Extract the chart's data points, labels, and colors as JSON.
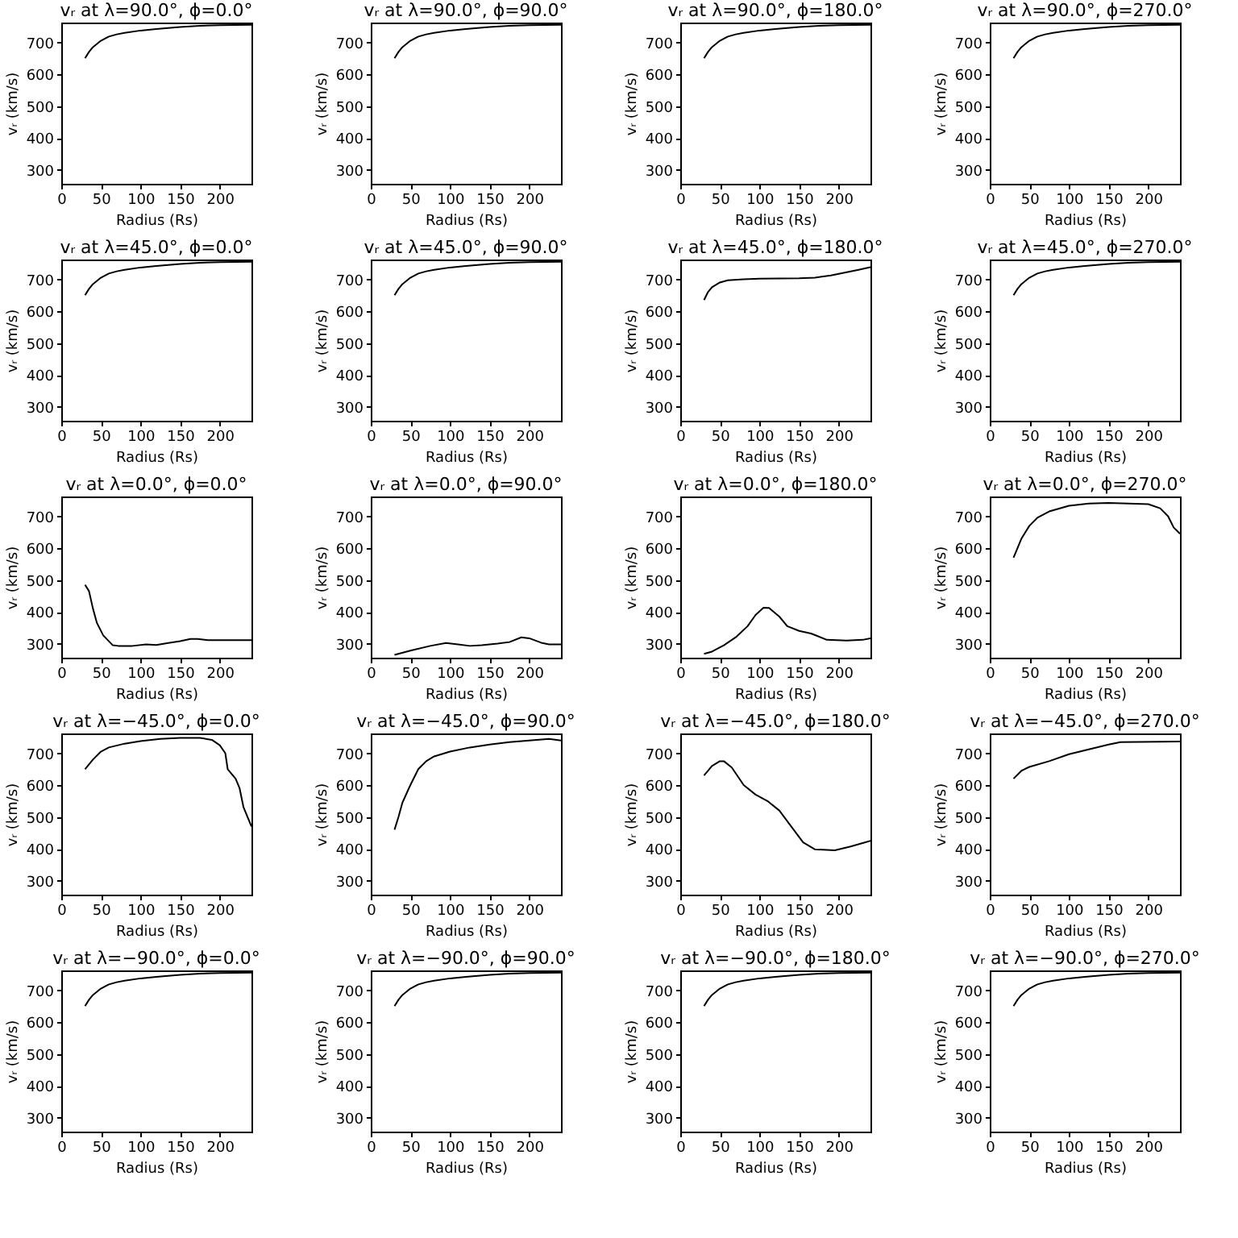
{
  "chart_data": [
    {
      "type": "line",
      "title": "vᵣ at λ=90.0°, ϕ=0.0°",
      "xlabel": "Radius (Rs)",
      "ylabel": "vᵣ (km/s)",
      "xlim": [
        0,
        240
      ],
      "ylim": [
        256,
        762
      ],
      "xticks": [
        0,
        50,
        100,
        150,
        200
      ],
      "yticks": [
        300,
        400,
        500,
        600,
        700
      ],
      "color": "#000000",
      "x": [
        30,
        35,
        40,
        50,
        60,
        70,
        80,
        100,
        120,
        150,
        175,
        200,
        240
      ],
      "values": [
        650,
        670,
        685,
        705,
        718,
        725,
        730,
        737,
        742,
        748,
        752,
        754,
        755
      ]
    },
    {
      "type": "line",
      "title": "vᵣ at λ=90.0°, ϕ=90.0°",
      "xlabel": "Radius (Rs)",
      "ylabel": "vᵣ (km/s)",
      "xlim": [
        0,
        240
      ],
      "ylim": [
        256,
        762
      ],
      "xticks": [
        0,
        50,
        100,
        150,
        200
      ],
      "yticks": [
        300,
        400,
        500,
        600,
        700
      ],
      "color": "#000000",
      "x": [
        30,
        35,
        40,
        50,
        60,
        70,
        80,
        100,
        120,
        150,
        175,
        200,
        240
      ],
      "values": [
        650,
        670,
        685,
        705,
        718,
        725,
        730,
        737,
        742,
        748,
        752,
        754,
        755
      ]
    },
    {
      "type": "line",
      "title": "vᵣ at λ=90.0°, ϕ=180.0°",
      "xlabel": "Radius (Rs)",
      "ylabel": "vᵣ (km/s)",
      "xlim": [
        0,
        240
      ],
      "ylim": [
        256,
        762
      ],
      "xticks": [
        0,
        50,
        100,
        150,
        200
      ],
      "yticks": [
        300,
        400,
        500,
        600,
        700
      ],
      "color": "#000000",
      "x": [
        30,
        35,
        40,
        50,
        60,
        70,
        80,
        100,
        120,
        150,
        175,
        200,
        240
      ],
      "values": [
        650,
        670,
        685,
        705,
        718,
        725,
        730,
        737,
        742,
        748,
        752,
        754,
        755
      ]
    },
    {
      "type": "line",
      "title": "vᵣ at λ=90.0°, ϕ=270.0°",
      "xlabel": "Radius (Rs)",
      "ylabel": "vᵣ (km/s)",
      "xlim": [
        0,
        240
      ],
      "ylim": [
        256,
        762
      ],
      "xticks": [
        0,
        50,
        100,
        150,
        200
      ],
      "yticks": [
        300,
        400,
        500,
        600,
        700
      ],
      "color": "#000000",
      "x": [
        30,
        35,
        40,
        50,
        60,
        70,
        80,
        100,
        120,
        150,
        175,
        200,
        240
      ],
      "values": [
        650,
        670,
        685,
        705,
        718,
        725,
        730,
        737,
        742,
        748,
        752,
        754,
        755
      ]
    },
    {
      "type": "line",
      "title": "vᵣ at λ=45.0°, ϕ=0.0°",
      "xlabel": "Radius (Rs)",
      "ylabel": "vᵣ (km/s)",
      "xlim": [
        0,
        240
      ],
      "ylim": [
        256,
        762
      ],
      "xticks": [
        0,
        50,
        100,
        150,
        200
      ],
      "yticks": [
        300,
        400,
        500,
        600,
        700
      ],
      "color": "#000000",
      "x": [
        30,
        35,
        40,
        50,
        60,
        70,
        80,
        100,
        120,
        150,
        175,
        200,
        240
      ],
      "values": [
        650,
        670,
        685,
        705,
        718,
        725,
        730,
        737,
        742,
        748,
        752,
        754,
        755
      ]
    },
    {
      "type": "line",
      "title": "vᵣ at λ=45.0°, ϕ=90.0°",
      "xlabel": "Radius (Rs)",
      "ylabel": "vᵣ (km/s)",
      "xlim": [
        0,
        240
      ],
      "ylim": [
        256,
        762
      ],
      "xticks": [
        0,
        50,
        100,
        150,
        200
      ],
      "yticks": [
        300,
        400,
        500,
        600,
        700
      ],
      "color": "#000000",
      "x": [
        30,
        35,
        40,
        50,
        60,
        70,
        80,
        100,
        120,
        150,
        175,
        200,
        240
      ],
      "values": [
        650,
        670,
        685,
        705,
        718,
        725,
        730,
        737,
        742,
        748,
        752,
        754,
        755
      ]
    },
    {
      "type": "line",
      "title": "vᵣ at λ=45.0°, ϕ=180.0°",
      "xlabel": "Radius (Rs)",
      "ylabel": "vᵣ (km/s)",
      "xlim": [
        0,
        240
      ],
      "ylim": [
        256,
        762
      ],
      "xticks": [
        0,
        50,
        100,
        150,
        200
      ],
      "yticks": [
        300,
        400,
        500,
        600,
        700
      ],
      "color": "#000000",
      "x": [
        30,
        35,
        40,
        50,
        60,
        80,
        100,
        150,
        170,
        190,
        210,
        225,
        240
      ],
      "values": [
        635,
        660,
        675,
        690,
        697,
        700,
        702,
        703,
        705,
        712,
        722,
        730,
        738
      ]
    },
    {
      "type": "line",
      "title": "vᵣ at λ=45.0°, ϕ=270.0°",
      "xlabel": "Radius (Rs)",
      "ylabel": "vᵣ (km/s)",
      "xlim": [
        0,
        240
      ],
      "ylim": [
        256,
        762
      ],
      "xticks": [
        0,
        50,
        100,
        150,
        200
      ],
      "yticks": [
        300,
        400,
        500,
        600,
        700
      ],
      "color": "#000000",
      "x": [
        30,
        35,
        40,
        50,
        60,
        70,
        80,
        100,
        120,
        150,
        175,
        200,
        240
      ],
      "values": [
        650,
        670,
        685,
        705,
        718,
        725,
        730,
        737,
        742,
        748,
        752,
        754,
        755
      ]
    },
    {
      "type": "line",
      "title": "vᵣ at λ=0.0°, ϕ=0.0°",
      "xlabel": "Radius (Rs)",
      "ylabel": "vᵣ (km/s)",
      "xlim": [
        0,
        240
      ],
      "ylim": [
        256,
        762
      ],
      "xticks": [
        0,
        50,
        100,
        150,
        200
      ],
      "yticks": [
        300,
        400,
        500,
        600,
        700
      ],
      "color": "#000000",
      "x": [
        30,
        35,
        40,
        45,
        53,
        65,
        72,
        90,
        107,
        120,
        135,
        150,
        163,
        172,
        185,
        240
      ],
      "values": [
        485,
        465,
        410,
        365,
        326,
        295,
        293,
        293,
        298,
        296,
        302,
        308,
        315,
        315,
        311,
        311
      ]
    },
    {
      "type": "line",
      "title": "vᵣ at λ=0.0°, ϕ=90.0°",
      "xlabel": "Radius (Rs)",
      "ylabel": "vᵣ (km/s)",
      "xlim": [
        0,
        240
      ],
      "ylim": [
        256,
        762
      ],
      "xticks": [
        0,
        50,
        100,
        150,
        200
      ],
      "yticks": [
        300,
        400,
        500,
        600,
        700
      ],
      "color": "#000000",
      "x": [
        30,
        50,
        75,
        95,
        110,
        125,
        140,
        160,
        175,
        190,
        200,
        215,
        225,
        240
      ],
      "values": [
        265,
        278,
        293,
        302,
        298,
        293,
        295,
        300,
        305,
        320,
        317,
        303,
        298,
        298
      ]
    },
    {
      "type": "line",
      "title": "vᵣ at λ=0.0°, ϕ=180.0°",
      "xlabel": "Radius (Rs)",
      "ylabel": "vᵣ (km/s)",
      "xlim": [
        0,
        240
      ],
      "ylim": [
        256,
        762
      ],
      "xticks": [
        0,
        50,
        100,
        150,
        200
      ],
      "yticks": [
        300,
        400,
        500,
        600,
        700
      ],
      "color": "#000000",
      "x": [
        30,
        40,
        55,
        70,
        85,
        95,
        105,
        112,
        125,
        135,
        150,
        165,
        185,
        210,
        230,
        240
      ],
      "values": [
        268,
        275,
        295,
        320,
        355,
        390,
        413,
        412,
        385,
        355,
        340,
        332,
        312,
        310,
        312,
        317
      ]
    },
    {
      "type": "line",
      "title": "vᵣ at λ=0.0°, ϕ=270.0°",
      "xlabel": "Radius (Rs)",
      "ylabel": "vᵣ (km/s)",
      "xlim": [
        0,
        240
      ],
      "ylim": [
        256,
        762
      ],
      "xticks": [
        0,
        50,
        100,
        150,
        200
      ],
      "yticks": [
        300,
        400,
        500,
        600,
        700
      ],
      "color": "#000000",
      "x": [
        30,
        35,
        40,
        50,
        60,
        75,
        100,
        125,
        150,
        175,
        200,
        215,
        225,
        232,
        240
      ],
      "values": [
        570,
        600,
        630,
        670,
        695,
        715,
        733,
        740,
        742,
        740,
        738,
        725,
        700,
        665,
        645
      ]
    },
    {
      "type": "line",
      "title": "vᵣ at λ=−45.0°, ϕ=0.0°",
      "xlabel": "Radius (Rs)",
      "ylabel": "vᵣ (km/s)",
      "xlim": [
        0,
        240
      ],
      "ylim": [
        256,
        762
      ],
      "xticks": [
        0,
        50,
        100,
        150,
        200
      ],
      "yticks": [
        300,
        400,
        500,
        600,
        700
      ],
      "color": "#000000",
      "x": [
        30,
        40,
        50,
        60,
        80,
        100,
        125,
        150,
        175,
        190,
        200,
        207,
        210,
        220,
        225,
        230,
        240
      ],
      "values": [
        650,
        680,
        705,
        718,
        730,
        738,
        745,
        748,
        748,
        742,
        725,
        700,
        650,
        620,
        590,
        530,
        470
      ]
    },
    {
      "type": "line",
      "title": "vᵣ at λ=−45.0°, ϕ=90.0°",
      "xlabel": "Radius (Rs)",
      "ylabel": "vᵣ (km/s)",
      "xlim": [
        0,
        240
      ],
      "ylim": [
        256,
        762
      ],
      "xticks": [
        0,
        50,
        100,
        150,
        200
      ],
      "yticks": [
        300,
        400,
        500,
        600,
        700
      ],
      "color": "#000000",
      "x": [
        30,
        35,
        40,
        50,
        60,
        70,
        80,
        100,
        125,
        150,
        175,
        200,
        225,
        240
      ],
      "values": [
        460,
        500,
        545,
        600,
        650,
        675,
        690,
        705,
        718,
        727,
        735,
        740,
        745,
        740
      ]
    },
    {
      "type": "line",
      "title": "vᵣ at λ=−45.0°, ϕ=180.0°",
      "xlabel": "Radius (Rs)",
      "ylabel": "vᵣ (km/s)",
      "xlim": [
        0,
        240
      ],
      "ylim": [
        256,
        762
      ],
      "xticks": [
        0,
        50,
        100,
        150,
        200
      ],
      "yticks": [
        300,
        400,
        500,
        600,
        700
      ],
      "color": "#000000",
      "x": [
        30,
        40,
        50,
        55,
        65,
        80,
        95,
        110,
        125,
        140,
        155,
        170,
        195,
        215,
        240
      ],
      "values": [
        630,
        660,
        675,
        675,
        655,
        600,
        570,
        550,
        520,
        470,
        420,
        398,
        395,
        407,
        425
      ]
    },
    {
      "type": "line",
      "title": "vᵣ at λ=−45.0°, ϕ=270.0°",
      "xlabel": "Radius (Rs)",
      "ylabel": "vᵣ (km/s)",
      "xlim": [
        0,
        240
      ],
      "ylim": [
        256,
        762
      ],
      "xticks": [
        0,
        50,
        100,
        150,
        200
      ],
      "yticks": [
        300,
        400,
        500,
        600,
        700
      ],
      "color": "#000000",
      "x": [
        30,
        40,
        50,
        75,
        100,
        125,
        150,
        165,
        240
      ],
      "values": [
        620,
        645,
        657,
        675,
        697,
        712,
        727,
        735,
        737
      ]
    },
    {
      "type": "line",
      "title": "vᵣ at λ=−90.0°, ϕ=0.0°",
      "xlabel": "Radius (Rs)",
      "ylabel": "vᵣ (km/s)",
      "xlim": [
        0,
        240
      ],
      "ylim": [
        256,
        762
      ],
      "xticks": [
        0,
        50,
        100,
        150,
        200
      ],
      "yticks": [
        300,
        400,
        500,
        600,
        700
      ],
      "color": "#000000",
      "x": [
        30,
        35,
        40,
        50,
        60,
        70,
        80,
        100,
        120,
        150,
        175,
        200,
        240
      ],
      "values": [
        650,
        670,
        685,
        705,
        718,
        725,
        730,
        737,
        742,
        748,
        752,
        754,
        755
      ]
    },
    {
      "type": "line",
      "title": "vᵣ at λ=−90.0°, ϕ=90.0°",
      "xlabel": "Radius (Rs)",
      "ylabel": "vᵣ (km/s)",
      "xlim": [
        0,
        240
      ],
      "ylim": [
        256,
        762
      ],
      "xticks": [
        0,
        50,
        100,
        150,
        200
      ],
      "yticks": [
        300,
        400,
        500,
        600,
        700
      ],
      "color": "#000000",
      "x": [
        30,
        35,
        40,
        50,
        60,
        70,
        80,
        100,
        120,
        150,
        175,
        200,
        240
      ],
      "values": [
        650,
        670,
        685,
        705,
        718,
        725,
        730,
        737,
        742,
        748,
        752,
        754,
        755
      ]
    },
    {
      "type": "line",
      "title": "vᵣ at λ=−90.0°, ϕ=180.0°",
      "xlabel": "Radius (Rs)",
      "ylabel": "vᵣ (km/s)",
      "xlim": [
        0,
        240
      ],
      "ylim": [
        256,
        762
      ],
      "xticks": [
        0,
        50,
        100,
        150,
        200
      ],
      "yticks": [
        300,
        400,
        500,
        600,
        700
      ],
      "color": "#000000",
      "x": [
        30,
        35,
        40,
        50,
        60,
        70,
        80,
        100,
        120,
        150,
        175,
        200,
        240
      ],
      "values": [
        650,
        670,
        685,
        705,
        718,
        725,
        730,
        737,
        742,
        748,
        752,
        754,
        755
      ]
    },
    {
      "type": "line",
      "title": "vᵣ at λ=−90.0°, ϕ=270.0°",
      "xlabel": "Radius (Rs)",
      "ylabel": "vᵣ (km/s)",
      "xlim": [
        0,
        240
      ],
      "ylim": [
        256,
        762
      ],
      "xticks": [
        0,
        50,
        100,
        150,
        200
      ],
      "yticks": [
        300,
        400,
        500,
        600,
        700
      ],
      "color": "#000000",
      "x": [
        30,
        35,
        40,
        50,
        60,
        70,
        80,
        100,
        120,
        150,
        175,
        200,
        240
      ],
      "values": [
        650,
        670,
        685,
        705,
        718,
        725,
        730,
        737,
        742,
        748,
        752,
        754,
        755
      ]
    }
  ]
}
